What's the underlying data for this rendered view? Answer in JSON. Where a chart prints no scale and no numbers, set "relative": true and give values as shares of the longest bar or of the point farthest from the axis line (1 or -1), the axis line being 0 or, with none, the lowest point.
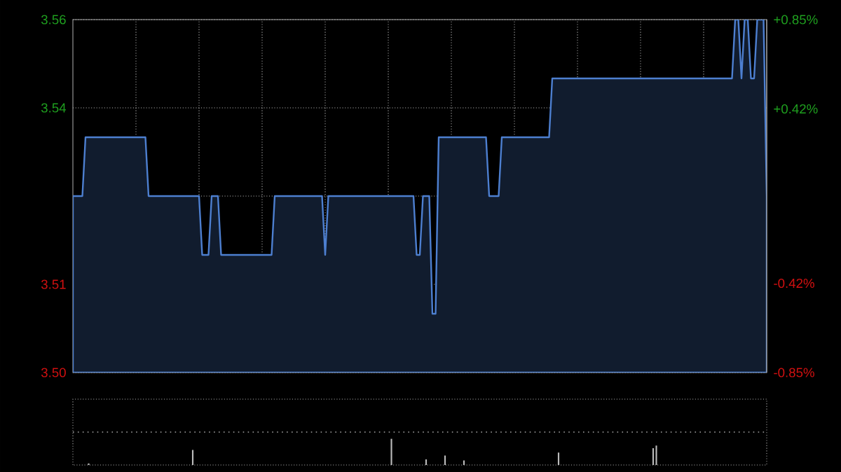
{
  "chart_data": [
    {
      "type": "area",
      "categories": [
        null,
        null,
        null,
        null,
        null,
        null,
        null,
        null,
        null,
        null,
        null,
        null,
        null,
        null,
        null,
        null,
        null,
        null,
        null,
        null,
        null,
        null,
        null,
        null,
        null,
        null,
        null,
        null,
        null,
        null,
        null,
        null,
        null,
        null,
        null,
        null,
        null,
        null,
        null,
        null,
        null,
        null,
        null,
        null,
        null,
        null,
        null,
        null,
        null,
        null,
        null,
        null,
        null,
        null,
        null,
        null,
        null,
        null,
        null,
        null,
        null,
        null,
        null,
        null,
        null,
        null,
        null,
        null,
        null,
        null,
        null,
        null,
        null,
        null,
        null,
        null,
        null,
        null,
        null,
        null,
        null,
        null,
        null,
        null,
        null,
        null,
        null,
        null,
        null,
        null,
        null,
        null,
        null,
        null,
        null,
        null,
        null,
        null,
        null,
        null,
        null,
        null,
        null,
        null,
        null,
        null,
        null,
        null,
        null,
        null,
        null,
        null,
        null,
        null,
        null,
        null,
        null,
        null,
        null,
        null,
        null,
        null,
        null,
        null,
        null,
        null,
        null,
        null,
        null,
        null,
        null,
        null,
        null,
        null,
        null,
        null,
        null,
        null,
        null,
        null,
        null,
        null,
        null,
        null,
        null,
        null,
        null,
        null,
        null,
        null,
        null,
        null,
        null,
        null,
        null,
        null,
        null,
        null,
        null,
        null,
        null,
        null,
        null,
        null,
        null,
        null,
        null,
        null,
        null,
        null,
        null,
        null,
        null,
        null,
        null,
        null,
        null,
        null,
        null,
        null,
        null,
        null,
        null,
        null,
        null,
        null,
        null,
        null,
        null,
        null,
        null,
        null,
        null,
        null,
        null,
        null,
        null,
        null,
        null,
        null,
        null,
        null,
        null,
        null,
        null,
        null,
        null,
        null,
        null,
        null,
        null,
        null,
        null,
        null,
        null,
        null,
        null,
        null,
        null,
        null,
        null
      ],
      "values": [
        3.53,
        3.53,
        3.53,
        3.53,
        3.54,
        3.54,
        3.54,
        3.54,
        3.54,
        3.54,
        3.54,
        3.54,
        3.54,
        3.54,
        3.54,
        3.54,
        3.54,
        3.54,
        3.54,
        3.54,
        3.54,
        3.54,
        3.54,
        3.54,
        3.53,
        3.53,
        3.53,
        3.53,
        3.53,
        3.53,
        3.53,
        3.53,
        3.53,
        3.53,
        3.53,
        3.53,
        3.53,
        3.53,
        3.53,
        3.53,
        3.53,
        3.52,
        3.52,
        3.52,
        3.53,
        3.53,
        3.53,
        3.52,
        3.52,
        3.52,
        3.52,
        3.52,
        3.52,
        3.52,
        3.52,
        3.52,
        3.52,
        3.52,
        3.52,
        3.52,
        3.52,
        3.52,
        3.52,
        3.52,
        3.53,
        3.53,
        3.53,
        3.53,
        3.53,
        3.53,
        3.53,
        3.53,
        3.53,
        3.53,
        3.53,
        3.53,
        3.53,
        3.53,
        3.53,
        3.53,
        3.52,
        3.53,
        3.53,
        3.53,
        3.53,
        3.53,
        3.53,
        3.53,
        3.53,
        3.53,
        3.53,
        3.53,
        3.53,
        3.53,
        3.53,
        3.53,
        3.53,
        3.53,
        3.53,
        3.53,
        3.53,
        3.53,
        3.53,
        3.53,
        3.53,
        3.53,
        3.53,
        3.53,
        3.53,
        3.52,
        3.52,
        3.53,
        3.53,
        3.53,
        3.51,
        3.51,
        3.54,
        3.54,
        3.54,
        3.54,
        3.54,
        3.54,
        3.54,
        3.54,
        3.54,
        3.54,
        3.54,
        3.54,
        3.54,
        3.54,
        3.54,
        3.54,
        3.53,
        3.53,
        3.53,
        3.53,
        3.54,
        3.54,
        3.54,
        3.54,
        3.54,
        3.54,
        3.54,
        3.54,
        3.54,
        3.54,
        3.54,
        3.54,
        3.54,
        3.54,
        3.54,
        3.54,
        3.55,
        3.55,
        3.55,
        3.55,
        3.55,
        3.55,
        3.55,
        3.55,
        3.55,
        3.55,
        3.55,
        3.55,
        3.55,
        3.55,
        3.55,
        3.55,
        3.55,
        3.55,
        3.55,
        3.55,
        3.55,
        3.55,
        3.55,
        3.55,
        3.55,
        3.55,
        3.55,
        3.55,
        3.55,
        3.55,
        3.55,
        3.55,
        3.55,
        3.55,
        3.55,
        3.55,
        3.55,
        3.55,
        3.55,
        3.55,
        3.55,
        3.55,
        3.55,
        3.55,
        3.55,
        3.55,
        3.55,
        3.55,
        3.55,
        3.55,
        3.55,
        3.55,
        3.55,
        3.55,
        3.55,
        3.55,
        3.55,
        3.55,
        3.56,
        3.56,
        3.55,
        3.56,
        3.56,
        3.55,
        3.55,
        3.56,
        3.56,
        3.56,
        3.53
      ],
      "color": "#4d7fd0",
      "ylim": [
        3.5,
        3.56
      ],
      "yticks": [
        {
          "value": 3.5,
          "label": "3.50"
        },
        {
          "value": 3.515,
          "label": "3.51"
        },
        {
          "value": 3.53,
          "label": null
        },
        {
          "value": 3.545,
          "label": "3.54"
        },
        {
          "value": 3.56,
          "label": "3.56"
        }
      ],
      "y2lim": [
        -0.85,
        0.85
      ],
      "y2ticks": [
        {
          "value": -0.85,
          "label": "-0.85%"
        },
        {
          "value": -0.42,
          "label": "-0.42%"
        },
        {
          "value": 0.42,
          "label": "+0.42%"
        },
        {
          "value": 0.85,
          "label": "+0.85%"
        }
      ],
      "grid": true
    },
    {
      "type": "bar",
      "relative": true,
      "categories": [
        null,
        null,
        null,
        null,
        null,
        null,
        null,
        null,
        null,
        null,
        null,
        null,
        null,
        null,
        null,
        null,
        null,
        null,
        null,
        null,
        null,
        null,
        null,
        null,
        null,
        null,
        null,
        null,
        null,
        null,
        null,
        null,
        null,
        null,
        null,
        null,
        null,
        null,
        null,
        null,
        null,
        null,
        null,
        null,
        null,
        null,
        null,
        null,
        null,
        null,
        null,
        null,
        null,
        null,
        null,
        null,
        null,
        null,
        null,
        null,
        null,
        null,
        null,
        null,
        null,
        null,
        null,
        null,
        null,
        null,
        null,
        null,
        null,
        null,
        null,
        null,
        null,
        null,
        null,
        null,
        null,
        null,
        null,
        null,
        null,
        null,
        null,
        null,
        null,
        null,
        null,
        null,
        null,
        null,
        null,
        null,
        null,
        null,
        null,
        null,
        null,
        null,
        null,
        null,
        null,
        null,
        null,
        null,
        null,
        null,
        null,
        null,
        null,
        null,
        null,
        null,
        null,
        null,
        null,
        null,
        null,
        null,
        null,
        null,
        null,
        null,
        null,
        null,
        null,
        null,
        null,
        null,
        null,
        null,
        null,
        null,
        null,
        null,
        null,
        null,
        null,
        null,
        null,
        null,
        null,
        null,
        null,
        null,
        null,
        null,
        null,
        null,
        null,
        null,
        null,
        null,
        null,
        null,
        null,
        null,
        null,
        null,
        null,
        null,
        null,
        null,
        null,
        null,
        null,
        null,
        null,
        null,
        null,
        null,
        null,
        null,
        null,
        null,
        null,
        null,
        null,
        null,
        null,
        null,
        null,
        null,
        null,
        null,
        null,
        null,
        null,
        null,
        null,
        null,
        null,
        null,
        null,
        null,
        null,
        null,
        null,
        null,
        null,
        null,
        null,
        null,
        null,
        null,
        null,
        null,
        null,
        null,
        null,
        null,
        null,
        null,
        null,
        null,
        null,
        null,
        null
      ],
      "values": [
        null,
        null,
        null,
        null,
        null,
        0.06,
        null,
        null,
        null,
        null,
        null,
        null,
        null,
        null,
        null,
        null,
        null,
        null,
        null,
        null,
        null,
        null,
        null,
        null,
        null,
        null,
        null,
        null,
        null,
        null,
        null,
        null,
        null,
        null,
        null,
        null,
        null,
        null,
        0.57,
        null,
        null,
        null,
        null,
        null,
        null,
        null,
        null,
        null,
        null,
        null,
        null,
        null,
        null,
        null,
        null,
        null,
        null,
        null,
        null,
        null,
        null,
        null,
        null,
        null,
        null,
        null,
        null,
        null,
        null,
        null,
        null,
        null,
        null,
        null,
        null,
        null,
        null,
        null,
        null,
        null,
        null,
        null,
        null,
        null,
        null,
        null,
        null,
        null,
        null,
        null,
        null,
        null,
        null,
        null,
        null,
        null,
        null,
        null,
        null,
        null,
        null,
        1,
        null,
        null,
        null,
        null,
        null,
        null,
        null,
        null,
        null,
        null,
        0.21,
        null,
        null,
        null,
        null,
        null,
        0.36,
        null,
        null,
        null,
        null,
        null,
        0.17,
        null,
        null,
        null,
        null,
        null,
        null,
        null,
        null,
        null,
        null,
        null,
        null,
        null,
        null,
        null,
        null,
        null,
        null,
        null,
        null,
        null,
        null,
        null,
        null,
        null,
        null,
        null,
        null,
        null,
        0.47,
        null,
        null,
        null,
        null,
        null,
        null,
        null,
        null,
        null,
        null,
        null,
        null,
        null,
        null,
        null,
        null,
        null,
        null,
        null,
        null,
        null,
        null,
        null,
        null,
        null,
        null,
        null,
        null,
        null,
        0.64,
        0.74,
        null,
        null,
        null,
        null,
        null,
        null,
        null,
        null,
        null,
        null,
        null,
        null,
        null,
        null,
        null,
        null,
        null,
        null,
        null,
        null,
        null,
        null,
        null,
        null,
        null,
        null,
        null,
        null,
        null,
        null,
        null,
        null,
        null,
        null,
        null
      ],
      "color": "#bbbbbb",
      "ref_lines": [
        {
          "axis": "y",
          "value": 1.25,
          "line_style": "dotted"
        }
      ]
    }
  ]
}
